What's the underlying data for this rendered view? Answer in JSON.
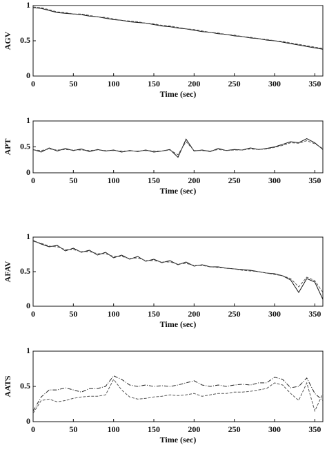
{
  "chart_data": [
    {
      "type": "line",
      "ylabel": "AGV",
      "xlabel": "Time (sec)",
      "x": [
        0,
        10,
        20,
        30,
        40,
        50,
        60,
        70,
        80,
        90,
        100,
        110,
        120,
        130,
        140,
        150,
        160,
        170,
        180,
        190,
        200,
        210,
        220,
        230,
        240,
        250,
        260,
        270,
        280,
        290,
        300,
        310,
        320,
        330,
        340,
        350,
        360
      ],
      "series": [
        {
          "color": "#111111",
          "style": "solid",
          "values": [
            0.97,
            0.96,
            0.93,
            0.9,
            0.89,
            0.88,
            0.87,
            0.85,
            0.84,
            0.82,
            0.8,
            0.79,
            0.77,
            0.76,
            0.75,
            0.73,
            0.71,
            0.7,
            0.68,
            0.67,
            0.65,
            0.63,
            0.62,
            0.6,
            0.59,
            0.57,
            0.56,
            0.54,
            0.53,
            0.51,
            0.5,
            0.48,
            0.46,
            0.44,
            0.42,
            0.4,
            0.38
          ]
        },
        {
          "color": "#555555",
          "style": "dashed",
          "values": [
            0.98,
            0.97,
            0.94,
            0.91,
            0.9,
            0.88,
            0.88,
            0.86,
            0.84,
            0.83,
            0.81,
            0.79,
            0.78,
            0.77,
            0.75,
            0.74,
            0.72,
            0.71,
            0.69,
            0.67,
            0.66,
            0.64,
            0.62,
            0.61,
            0.59,
            0.58,
            0.56,
            0.55,
            0.53,
            0.52,
            0.5,
            0.49,
            0.47,
            0.45,
            0.43,
            0.41,
            0.39
          ]
        }
      ],
      "xlim": [
        0,
        360
      ],
      "ylim": [
        0,
        1
      ],
      "xticks": [
        0,
        50,
        100,
        150,
        200,
        250,
        300,
        350
      ],
      "yticks": [
        0,
        0.5,
        1
      ]
    },
    {
      "type": "line",
      "ylabel": "APT",
      "xlabel": "Time (sec)",
      "x": [
        0,
        10,
        20,
        30,
        40,
        50,
        60,
        70,
        80,
        90,
        100,
        110,
        120,
        130,
        140,
        150,
        160,
        170,
        180,
        190,
        200,
        210,
        220,
        230,
        240,
        250,
        260,
        270,
        280,
        290,
        300,
        310,
        320,
        330,
        340,
        350,
        360
      ],
      "series": [
        {
          "color": "#111111",
          "style": "solid",
          "values": [
            0.45,
            0.4,
            0.48,
            0.42,
            0.47,
            0.43,
            0.46,
            0.41,
            0.45,
            0.42,
            0.44,
            0.4,
            0.43,
            0.41,
            0.44,
            0.4,
            0.42,
            0.45,
            0.3,
            0.65,
            0.42,
            0.44,
            0.41,
            0.47,
            0.43,
            0.45,
            0.44,
            0.48,
            0.45,
            0.47,
            0.5,
            0.55,
            0.6,
            0.58,
            0.66,
            0.58,
            0.45
          ]
        },
        {
          "color": "#555555",
          "style": "dashed",
          "values": [
            0.44,
            0.43,
            0.46,
            0.44,
            0.45,
            0.44,
            0.44,
            0.43,
            0.44,
            0.43,
            0.43,
            0.42,
            0.42,
            0.42,
            0.43,
            0.42,
            0.42,
            0.44,
            0.35,
            0.6,
            0.43,
            0.43,
            0.42,
            0.45,
            0.43,
            0.44,
            0.44,
            0.46,
            0.45,
            0.46,
            0.49,
            0.53,
            0.58,
            0.57,
            0.62,
            0.56,
            0.47
          ]
        }
      ],
      "xlim": [
        0,
        360
      ],
      "ylim": [
        0,
        1
      ],
      "xticks": [
        0,
        50,
        100,
        150,
        200,
        250,
        300,
        350
      ],
      "yticks": [
        0,
        0.5,
        1
      ]
    },
    {
      "type": "line",
      "ylabel": "AFAV",
      "xlabel": "Time (sec)",
      "x": [
        0,
        10,
        20,
        30,
        40,
        50,
        60,
        70,
        80,
        90,
        100,
        110,
        120,
        130,
        140,
        150,
        160,
        170,
        180,
        190,
        200,
        210,
        220,
        230,
        240,
        250,
        260,
        270,
        280,
        290,
        300,
        310,
        320,
        330,
        340,
        350,
        360
      ],
      "series": [
        {
          "color": "#111111",
          "style": "solid",
          "values": [
            0.95,
            0.9,
            0.86,
            0.88,
            0.8,
            0.84,
            0.78,
            0.81,
            0.74,
            0.78,
            0.7,
            0.74,
            0.68,
            0.72,
            0.65,
            0.68,
            0.63,
            0.66,
            0.6,
            0.64,
            0.58,
            0.6,
            0.57,
            0.57,
            0.55,
            0.54,
            0.53,
            0.52,
            0.5,
            0.48,
            0.47,
            0.44,
            0.38,
            0.2,
            0.4,
            0.35,
            0.1
          ]
        },
        {
          "color": "#555555",
          "style": "dashed",
          "values": [
            0.94,
            0.91,
            0.87,
            0.86,
            0.82,
            0.82,
            0.79,
            0.79,
            0.76,
            0.76,
            0.72,
            0.72,
            0.69,
            0.7,
            0.66,
            0.66,
            0.64,
            0.64,
            0.61,
            0.62,
            0.59,
            0.59,
            0.57,
            0.56,
            0.55,
            0.54,
            0.52,
            0.51,
            0.5,
            0.48,
            0.46,
            0.44,
            0.4,
            0.28,
            0.42,
            0.37,
            0.2
          ]
        }
      ],
      "xlim": [
        0,
        360
      ],
      "ylim": [
        0,
        1
      ],
      "xticks": [
        0,
        50,
        100,
        150,
        200,
        250,
        300,
        350
      ],
      "yticks": [
        0,
        0.5,
        1
      ]
    },
    {
      "type": "line",
      "ylabel": "AATS",
      "xlabel": "Time (sec)",
      "x": [
        0,
        10,
        20,
        30,
        40,
        50,
        60,
        70,
        80,
        90,
        100,
        110,
        120,
        130,
        140,
        150,
        160,
        170,
        180,
        190,
        200,
        210,
        220,
        230,
        240,
        250,
        260,
        270,
        280,
        290,
        300,
        310,
        320,
        330,
        340,
        350,
        360
      ],
      "series": [
        {
          "color": "#222222",
          "style": "dashdot",
          "values": [
            0.15,
            0.35,
            0.45,
            0.45,
            0.48,
            0.45,
            0.42,
            0.47,
            0.47,
            0.5,
            0.65,
            0.6,
            0.52,
            0.5,
            0.52,
            0.5,
            0.51,
            0.5,
            0.52,
            0.55,
            0.58,
            0.52,
            0.5,
            0.52,
            0.5,
            0.52,
            0.53,
            0.52,
            0.55,
            0.55,
            0.63,
            0.6,
            0.48,
            0.5,
            0.62,
            0.4,
            0.3
          ]
        },
        {
          "color": "#555555",
          "style": "dashed",
          "values": [
            0.12,
            0.3,
            0.32,
            0.28,
            0.3,
            0.33,
            0.35,
            0.36,
            0.36,
            0.38,
            0.6,
            0.45,
            0.35,
            0.32,
            0.33,
            0.35,
            0.36,
            0.38,
            0.37,
            0.38,
            0.4,
            0.36,
            0.38,
            0.4,
            0.4,
            0.42,
            0.42,
            0.43,
            0.45,
            0.47,
            0.55,
            0.52,
            0.4,
            0.3,
            0.55,
            0.15,
            0.4
          ]
        }
      ],
      "xlim": [
        0,
        360
      ],
      "ylim": [
        0,
        1
      ],
      "xticks": [
        0,
        50,
        100,
        150,
        200,
        250,
        300,
        350
      ],
      "yticks": [
        0,
        0.5,
        1
      ]
    }
  ]
}
